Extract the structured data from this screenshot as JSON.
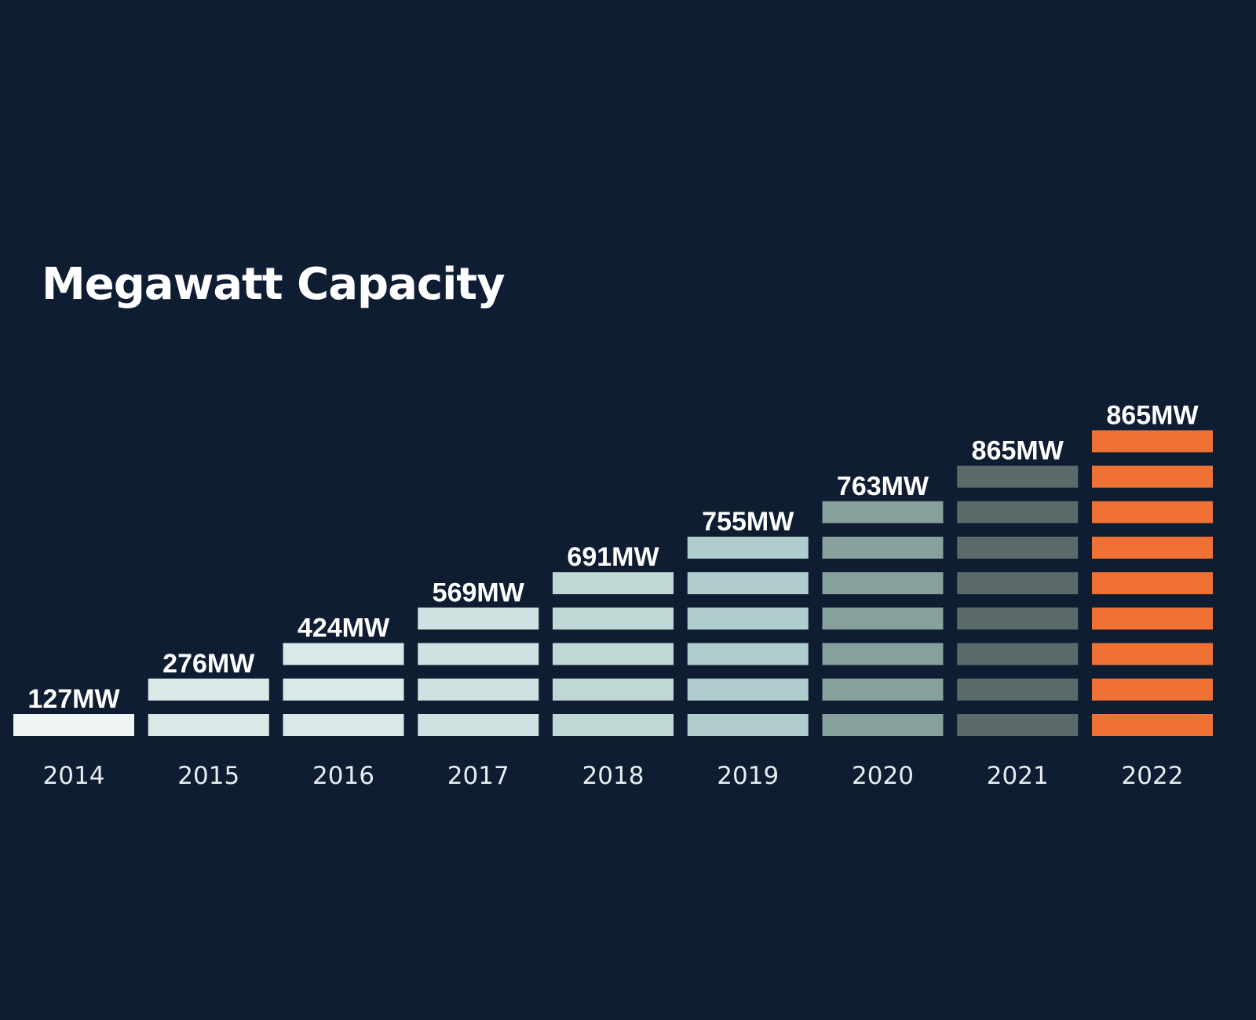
{
  "chart_data": {
    "type": "bar",
    "title": "Megawatt Capacity",
    "categories": [
      "2014",
      "2015",
      "2016",
      "2017",
      "2018",
      "2019",
      "2020",
      "2021",
      "2022"
    ],
    "values": [
      127,
      276,
      424,
      569,
      691,
      755,
      763,
      865,
      865
    ],
    "segments": [
      1,
      2,
      3,
      4,
      5,
      6,
      7,
      8,
      9
    ],
    "value_labels": [
      "127MW",
      "276MW",
      "424MW",
      "569MW",
      "691MW",
      "755MW",
      "763MW",
      "865MW",
      "865MW"
    ],
    "colors": [
      "#eef5f4",
      "#dbe8e8",
      "#d9e8e8",
      "#cfe1e0",
      "#bfd8d6",
      "#aecdcc",
      "#87a09b",
      "#5a6a68",
      "#ef7133"
    ],
    "xlabel": "",
    "ylabel": "",
    "unit": "MW",
    "grid": false,
    "legend": "none"
  },
  "colors": {
    "background": "#0f1d33",
    "text": "#ffffff",
    "axis_text": "#e6ecef",
    "highlight": "#ef7133"
  }
}
